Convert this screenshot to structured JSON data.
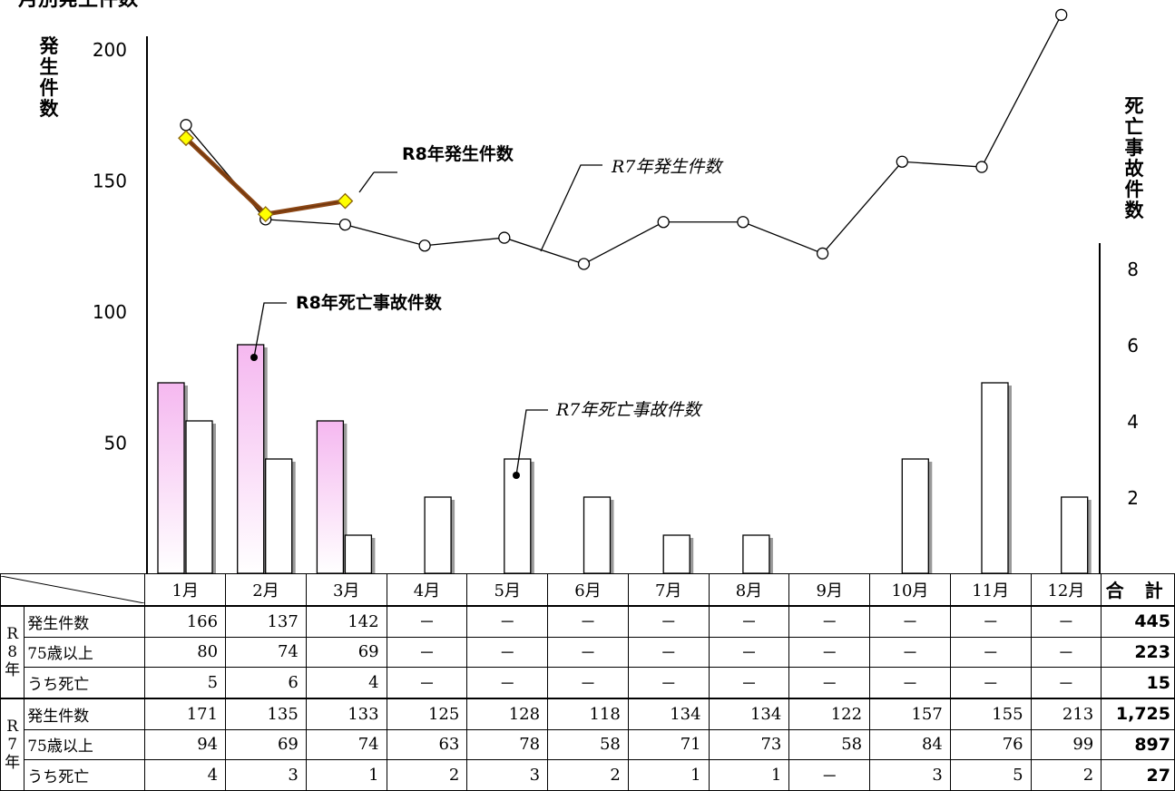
{
  "title": "月別発生件数",
  "left_axis_label": "発生件数",
  "right_axis_label": "死亡事故件数",
  "annotations": {
    "r8_occ": "R8年発生件数",
    "r7_occ": "R7年発生件数",
    "r8_fat": "R8年死亡事故件数",
    "r7_fat": "R7年死亡事故件数"
  },
  "chart_data": {
    "type": "bar+line",
    "categories": [
      "1月",
      "2月",
      "3月",
      "4月",
      "5月",
      "6月",
      "7月",
      "8月",
      "9月",
      "10月",
      "11月",
      "12月"
    ],
    "left_axis": {
      "label": "発生件数",
      "ylim": [
        0,
        210
      ],
      "ticks": [
        50,
        100,
        150,
        200
      ]
    },
    "right_axis": {
      "label": "死亡事故件数",
      "ylim": [
        0,
        8
      ],
      "ticks": [
        2,
        4,
        6,
        8
      ]
    },
    "line_series": [
      {
        "name": "R7年発生件数",
        "values": [
          171,
          135,
          133,
          125,
          128,
          118,
          134,
          134,
          122,
          157,
          155,
          213
        ],
        "color": "#000000",
        "marker": "circle"
      },
      {
        "name": "R8年発生件数",
        "values": [
          166,
          137,
          142,
          null,
          null,
          null,
          null,
          null,
          null,
          null,
          null,
          null
        ],
        "color": "#8B4513",
        "marker": "diamond",
        "marker_color": "#FFFF00"
      }
    ],
    "bar_series": [
      {
        "name": "R8年死亡事故件数",
        "values": [
          5,
          6,
          4,
          null,
          null,
          null,
          null,
          null,
          null,
          null,
          null,
          null
        ],
        "color": "#F5B8F0"
      },
      {
        "name": "R7年死亡事故件数",
        "values": [
          4,
          3,
          1,
          2,
          3,
          2,
          1,
          1,
          0,
          3,
          5,
          2
        ],
        "color": "#FFFFFF"
      }
    ],
    "grid": false,
    "legend": "callout annotations"
  },
  "table": {
    "months": [
      "1月",
      "2月",
      "3月",
      "4月",
      "5月",
      "6月",
      "7月",
      "8月",
      "9月",
      "10月",
      "11月",
      "12月"
    ],
    "total_header": "合 計",
    "groups": [
      {
        "year": "R8年",
        "rows": [
          {
            "label": "発生件数",
            "values": [
              "166",
              "137",
              "142",
              "－",
              "－",
              "－",
              "－",
              "－",
              "－",
              "－",
              "－",
              "－"
            ],
            "total": "445"
          },
          {
            "label": "75歳以上",
            "values": [
              "80",
              "74",
              "69",
              "－",
              "－",
              "－",
              "－",
              "－",
              "－",
              "－",
              "－",
              "－"
            ],
            "total": "223"
          },
          {
            "label": "うち死亡",
            "values": [
              "5",
              "6",
              "4",
              "－",
              "－",
              "－",
              "－",
              "－",
              "－",
              "－",
              "－",
              "－"
            ],
            "total": "15"
          }
        ]
      },
      {
        "year": "R7年",
        "rows": [
          {
            "label": "発生件数",
            "values": [
              "171",
              "135",
              "133",
              "125",
              "128",
              "118",
              "134",
              "134",
              "122",
              "157",
              "155",
              "213"
            ],
            "total": "1,725"
          },
          {
            "label": "75歳以上",
            "values": [
              "94",
              "69",
              "74",
              "63",
              "78",
              "58",
              "71",
              "73",
              "58",
              "84",
              "76",
              "99"
            ],
            "total": "897"
          },
          {
            "label": "うち死亡",
            "values": [
              "4",
              "3",
              "1",
              "2",
              "3",
              "2",
              "1",
              "1",
              "－",
              "3",
              "5",
              "2"
            ],
            "total": "27"
          }
        ]
      }
    ]
  }
}
